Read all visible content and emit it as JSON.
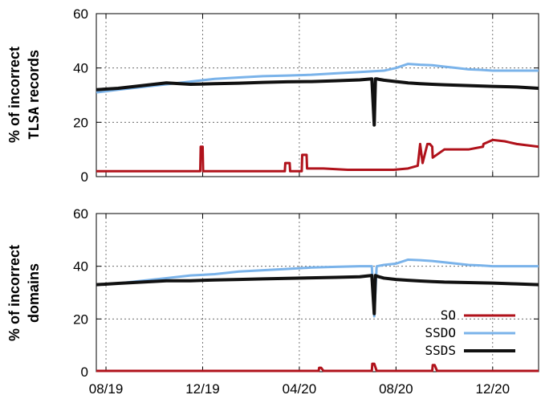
{
  "chart_data": [
    {
      "type": "line",
      "panel": "top",
      "ylabel_line1": "% of incorrect",
      "ylabel_line2_mono": "TLSA",
      "ylabel_line2_rest": "records",
      "x_tick_labels": [
        "08/19",
        "12/19",
        "04/20",
        "08/20",
        "12/20"
      ],
      "x_ticks": [
        0,
        4,
        8,
        12,
        16
      ],
      "xlim": [
        -0.4,
        17.9
      ],
      "ylim": [
        0,
        60
      ],
      "y_ticks": [
        0,
        20,
        40,
        60
      ],
      "grid": true,
      "series": [
        {
          "name": "SO",
          "color": "#b0121b",
          "x": [
            -0.4,
            1,
            2,
            3.5,
            3.9,
            3.92,
            4.0,
            4.02,
            4.4,
            6,
            7.4,
            7.42,
            7.6,
            7.62,
            8.1,
            8.12,
            8.3,
            8.32,
            9,
            10,
            11,
            11.9,
            12.5,
            12.9,
            13.0,
            13.1,
            13.3,
            13.4,
            13.5,
            13.52,
            14,
            15,
            15.6,
            15.62,
            16,
            16.5,
            17,
            17.9
          ],
          "y": [
            2,
            2,
            2,
            2,
            2,
            11,
            11,
            2,
            2,
            2,
            2,
            5,
            5,
            2,
            2,
            8,
            8,
            3,
            3,
            2.5,
            2.5,
            2.5,
            3,
            4,
            12,
            5,
            12,
            12,
            11,
            7,
            10,
            10,
            11,
            12,
            13.5,
            13,
            12,
            11
          ]
        },
        {
          "name": "SSDO",
          "color": "#7ab3ea",
          "x": [
            -0.4,
            0.5,
            1.5,
            2.5,
            3.5,
            4.5,
            5.5,
            6.5,
            7.5,
            8.5,
            9.5,
            10.5,
            11.5,
            12.0,
            12.5,
            13.0,
            13.5,
            14.0,
            14.5,
            15.0,
            15.5,
            16.0,
            16.5,
            17.0,
            17.9
          ],
          "y": [
            31,
            32,
            33,
            34,
            35,
            36,
            36.5,
            37,
            37.2,
            37.5,
            38,
            38.5,
            39,
            40,
            41.5,
            41.2,
            41,
            40.5,
            40,
            39.5,
            39.3,
            39,
            39,
            39,
            39
          ]
        },
        {
          "name": "SSDS",
          "color": "#111111",
          "x": [
            -0.4,
            0.5,
            1.5,
            2.5,
            3.5,
            4.5,
            5.5,
            6.5,
            7.5,
            8.5,
            9.5,
            10.5,
            11.0,
            11.1,
            11.15,
            11.2,
            11.3,
            11.5,
            12.0,
            12.5,
            13.0,
            13.5,
            14.0,
            15.0,
            16.0,
            17.0,
            17.9
          ],
          "y": [
            32,
            32.5,
            33.5,
            34.5,
            34,
            34.2,
            34.4,
            34.7,
            34.9,
            35,
            35.3,
            35.6,
            36,
            19,
            36,
            36,
            35.8,
            35.5,
            35,
            34.5,
            34.2,
            34,
            33.8,
            33.5,
            33.2,
            33,
            32.5
          ]
        }
      ]
    },
    {
      "type": "line",
      "panel": "bottom",
      "ylabel_line1": "% of incorrect",
      "ylabel_line2": "domains",
      "x_tick_labels": [
        "08/19",
        "12/19",
        "04/20",
        "08/20",
        "12/20"
      ],
      "x_ticks": [
        0,
        4,
        8,
        12,
        16
      ],
      "xlim": [
        -0.4,
        17.9
      ],
      "ylim": [
        0,
        60
      ],
      "y_ticks": [
        0,
        20,
        40,
        60
      ],
      "grid": true,
      "legend": {
        "placement": "bottom-right",
        "items": [
          "SO",
          "SSDO",
          "SSDS"
        ]
      },
      "series": [
        {
          "name": "SO",
          "color": "#b0121b",
          "x": [
            -0.4,
            2,
            4,
            6,
            7.5,
            8.8,
            8.82,
            8.9,
            9,
            10,
            11.0,
            11.02,
            11.1,
            11.2,
            12,
            13.5,
            13.52,
            13.6,
            13.7,
            15,
            17.9
          ],
          "y": [
            0.3,
            0.3,
            0.3,
            0.3,
            0.3,
            0.3,
            1.5,
            1.5,
            0.3,
            0.3,
            0.3,
            3,
            3,
            0.3,
            0.3,
            0.3,
            2.5,
            2.5,
            0.3,
            0.3,
            0.3
          ]
        },
        {
          "name": "SSDO",
          "color": "#7ab3ea",
          "x": [
            -0.4,
            0.5,
            1.5,
            2.5,
            3.5,
            4.5,
            5.5,
            6.5,
            7.5,
            8.5,
            9.5,
            10.5,
            11.0,
            11.1,
            11.2,
            11.5,
            12.0,
            12.5,
            13.0,
            13.5,
            14.0,
            14.5,
            15.0,
            15.5,
            16.0,
            16.5,
            17.0,
            17.9
          ],
          "y": [
            33,
            33.5,
            34.5,
            35.5,
            36.5,
            37,
            38,
            38.5,
            39,
            39.5,
            39.8,
            40,
            40,
            21,
            40,
            40.5,
            41,
            42.5,
            42.3,
            42,
            41.5,
            41,
            40.5,
            40.3,
            40,
            40,
            40,
            40
          ]
        },
        {
          "name": "SSDS",
          "color": "#111111",
          "x": [
            -0.4,
            0.5,
            1.5,
            2.5,
            3.5,
            4.5,
            5.5,
            6.5,
            7.5,
            8.5,
            9.5,
            10.5,
            11.0,
            11.1,
            11.15,
            11.2,
            11.3,
            11.5,
            12.0,
            12.5,
            13.0,
            13.5,
            14.0,
            15.0,
            16.0,
            17.0,
            17.9
          ],
          "y": [
            33,
            33.5,
            34,
            34.5,
            34.5,
            34.8,
            35,
            35.2,
            35.4,
            35.6,
            35.8,
            36,
            36.5,
            22,
            36.5,
            36.3,
            36,
            35.5,
            35,
            34.7,
            34.4,
            34.2,
            34,
            33.8,
            33.6,
            33.3,
            33
          ]
        }
      ]
    }
  ]
}
